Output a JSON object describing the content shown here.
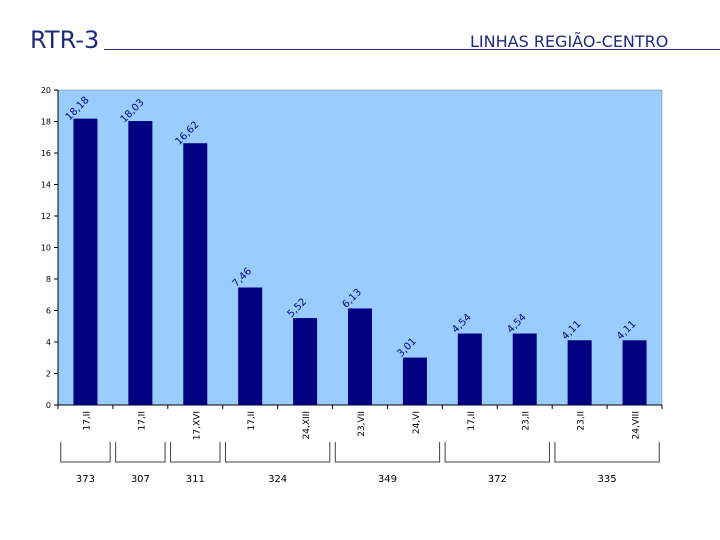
{
  "header": {
    "left_title": "RTR-3",
    "right_title": "LINHAS REGIÃO-CENTRO"
  },
  "colors": {
    "plot_background": "#99ccff",
    "bar_fill": "#000080",
    "title_color": "#1f2a7a"
  },
  "chart_data": {
    "type": "bar",
    "categories": [
      "17,II",
      "17,II",
      "17,XVI",
      "17,II",
      "24,XIII",
      "23,VII",
      "24,VI",
      "17,II",
      "23,II",
      "23,II",
      "24,VIII"
    ],
    "values": [
      18.18,
      18.03,
      16.62,
      7.46,
      5.52,
      6.13,
      3.01,
      4.54,
      4.54,
      4.11,
      4.11
    ],
    "data_labels": [
      "18,18",
      "18,03",
      "16,62",
      "7,46",
      "5,52",
      "6,13",
      "3,01",
      "4,54",
      "4,54",
      "4,11",
      "4,11"
    ],
    "ylim": [
      0,
      20
    ],
    "yticks": [
      0,
      2,
      4,
      6,
      8,
      10,
      12,
      14,
      16,
      18,
      20
    ],
    "grid": false,
    "legend": "none",
    "groups": [
      {
        "label": "373",
        "start": 0,
        "end": 0
      },
      {
        "label": "307",
        "start": 1,
        "end": 1
      },
      {
        "label": "311",
        "start": 2,
        "end": 2
      },
      {
        "label": "324",
        "start": 3,
        "end": 4
      },
      {
        "label": "349",
        "start": 5,
        "end": 6
      },
      {
        "label": "372",
        "start": 7,
        "end": 8
      },
      {
        "label": "335",
        "start": 9,
        "end": 10
      }
    ]
  }
}
